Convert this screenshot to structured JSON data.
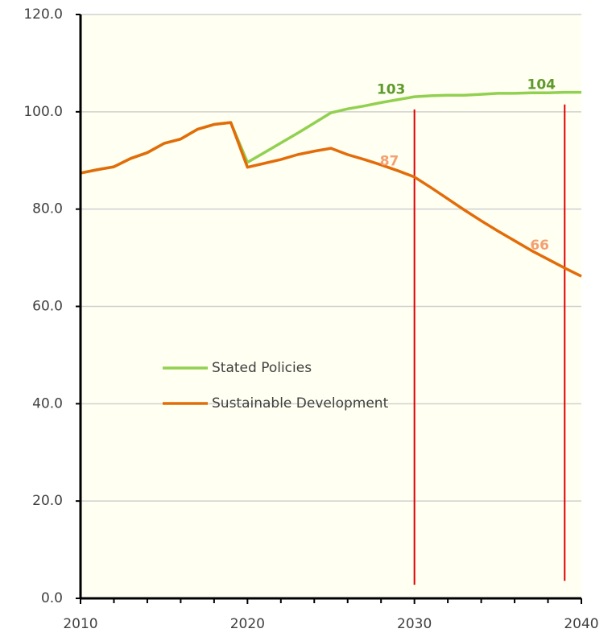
{
  "chart_data": {
    "type": "line",
    "x": [
      2010,
      2011,
      2012,
      2013,
      2014,
      2015,
      2016,
      2017,
      2018,
      2019,
      2020,
      2021,
      2022,
      2023,
      2024,
      2025,
      2026,
      2027,
      2028,
      2029,
      2030,
      2031,
      2032,
      2033,
      2034,
      2035,
      2036,
      2037,
      2038,
      2039,
      2040
    ],
    "series": [
      {
        "name": "Stated Policies",
        "color": "#92d050",
        "values": [
          87.4,
          88.1,
          88.7,
          90.4,
          91.6,
          93.5,
          94.4,
          96.4,
          97.4,
          97.8,
          89.6,
          91.6,
          93.6,
          95.6,
          97.7,
          99.8,
          100.6,
          101.2,
          101.9,
          102.5,
          103.1,
          103.3,
          103.4,
          103.4,
          103.6,
          103.8,
          103.8,
          103.9,
          103.9,
          104.0,
          104.0
        ]
      },
      {
        "name": "Sustainable Development",
        "color": "#e36c09",
        "values": [
          87.4,
          88.1,
          88.7,
          90.4,
          91.6,
          93.5,
          94.4,
          96.4,
          97.4,
          97.8,
          88.6,
          89.4,
          90.2,
          91.2,
          91.9,
          92.5,
          91.2,
          90.2,
          89.1,
          87.9,
          86.6,
          84.4,
          82.1,
          79.8,
          77.6,
          75.5,
          73.5,
          71.5,
          69.7,
          67.9,
          66.2
        ]
      }
    ],
    "annotations": [
      {
        "text": "103",
        "x": 2028.6,
        "y": 104.5,
        "color": "#5e9a2c"
      },
      {
        "text": "104",
        "x": 2037.6,
        "y": 105.5,
        "color": "#5e9a2c"
      },
      {
        "text": "87",
        "x": 2028.5,
        "y": 89.8,
        "color": "#f4a070"
      },
      {
        "text": "66",
        "x": 2037.5,
        "y": 72.5,
        "color": "#f4a070"
      }
    ],
    "reference_lines": [
      {
        "x": 2030,
        "y": [
          2.8,
          100.5
        ],
        "color": "#e00000"
      },
      {
        "x": 2039,
        "y": [
          3.6,
          101.5
        ],
        "color": "#e00000"
      }
    ],
    "xlim": [
      2010,
      2040
    ],
    "xticks": [
      2010,
      2020,
      2030,
      2040
    ],
    "xminor_ticks": [
      2012,
      2014,
      2016,
      2018,
      2022,
      2024,
      2026,
      2028,
      2032,
      2034,
      2036,
      2038
    ],
    "ylim": [
      0,
      120
    ],
    "yticks": [
      {
        "value": 0,
        "label": "0.0"
      },
      {
        "value": 20,
        "label": "20.0"
      },
      {
        "value": 40,
        "label": "40.0"
      },
      {
        "value": 60,
        "label": "60.0"
      },
      {
        "value": 80,
        "label": "80.0"
      },
      {
        "value": 100,
        "label": "100.0"
      },
      {
        "value": 120,
        "label": "120.0"
      }
    ],
    "grid": true
  }
}
